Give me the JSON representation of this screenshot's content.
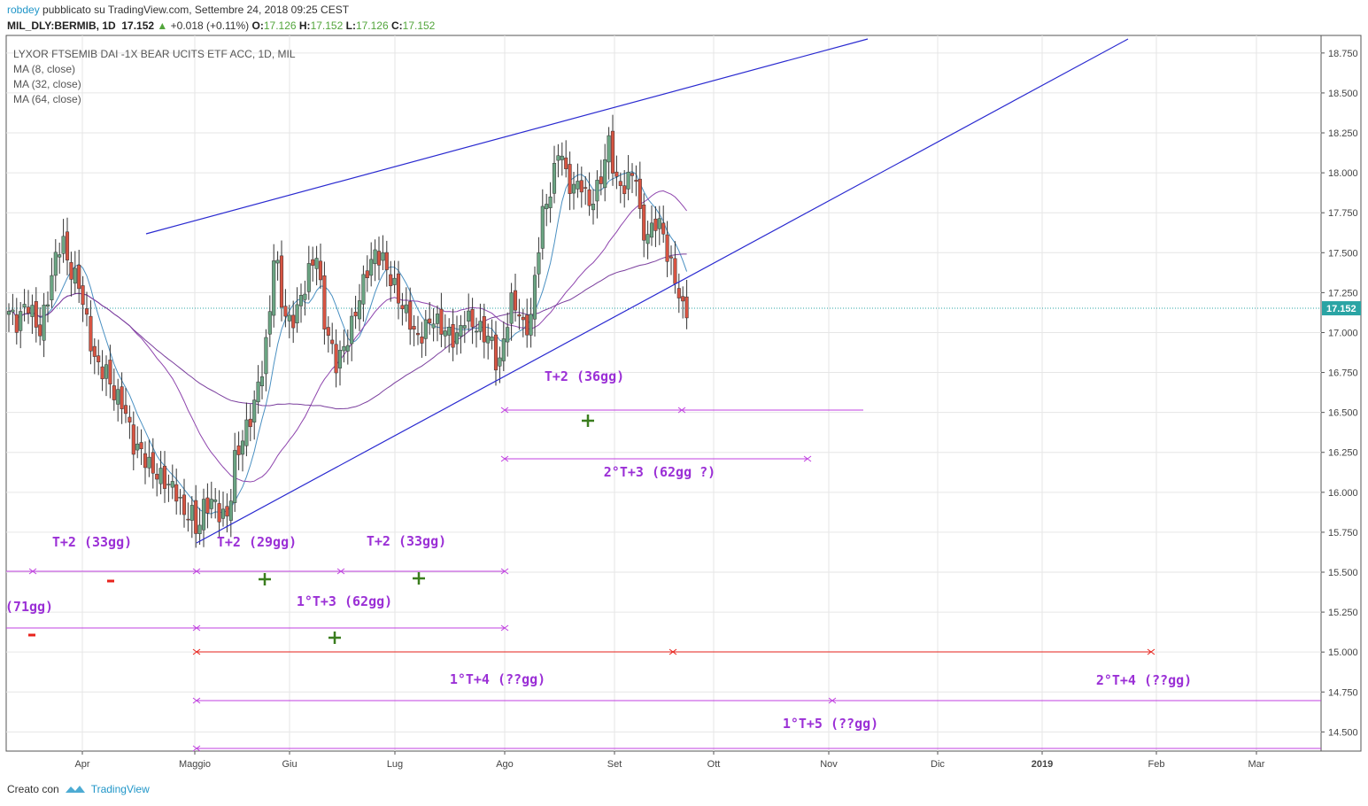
{
  "header": {
    "user": "robdey",
    "published": "pubblicato su TradingView.com, Settembre 24, 2018 09:25 CEST",
    "symbol": "MIL_DLY:BERMIB, 1D",
    "last": "17.152",
    "change_arrow": "▲",
    "change": "+0.018 (+0.11%)",
    "o_label": "O:",
    "o_value": "17.126",
    "h_label": "H:",
    "h_value": "17.152",
    "l_label": "L:",
    "l_value": "17.126",
    "c_label": "C:",
    "c_value": "17.152"
  },
  "legend": {
    "title": "LYXOR FTSEMIB DAI -1X BEAR UCITS ETF ACC, 1D, MIL",
    "ma1": "MA (8, close)",
    "ma2": "MA (32, close)",
    "ma3": "MA (64, close)"
  },
  "footer": {
    "created_with": "Creato con",
    "brand": "TradingView",
    "brand_icon": "tradingview-logo-icon"
  },
  "colors": {
    "up": "#6ba583",
    "down": "#d75442",
    "trend": "#2a2ad0",
    "ma8": "#4a90c2",
    "ma32": "#8e44ad",
    "ma64": "#7b3f9e",
    "purple_text": "#9b30d6",
    "red_marker": "#e8231c",
    "green_marker": "#3a7d1e",
    "price_badge": "#2aa4a4"
  },
  "chart_data": {
    "type": "candlestick",
    "title": "LYXOR FTSEMIB DAI -1X BEAR UCITS ETF ACC, 1D, MIL",
    "x_tick_labels": [
      "Apr",
      "Maggio",
      "Giu",
      "Lug",
      "Ago",
      "Set",
      "Ott",
      "Nov",
      "Dic",
      "2019",
      "Feb",
      "Mar"
    ],
    "y_tick_labels": [
      "18.750",
      "18.500",
      "18.250",
      "18.000",
      "17.750",
      "17.500",
      "17.250",
      "17.000",
      "16.750",
      "16.500",
      "16.250",
      "16.000",
      "15.750",
      "15.500",
      "15.250",
      "15.000",
      "14.750",
      "14.500"
    ],
    "ylim": [
      14.38,
      18.86
    ],
    "last_price": "17.152",
    "grid": true,
    "series": [
      {
        "name": "MA (8, close)"
      },
      {
        "name": "MA (32, close)"
      },
      {
        "name": "MA (64, close)"
      }
    ],
    "annotations": [
      {
        "text": "T+2 (36gg)"
      },
      {
        "text": "2°T+3 (62gg ?)"
      },
      {
        "text": "T+2 (33gg)"
      },
      {
        "text": "T+2 (29gg)"
      },
      {
        "text": "T+2 (33gg)"
      },
      {
        "text": "(71gg)"
      },
      {
        "text": "1°T+3 (62gg)"
      },
      {
        "text": "1°T+4 (??gg)"
      },
      {
        "text": "2°T+4 (??gg)"
      },
      {
        "text": "1°T+5 (??gg)"
      }
    ]
  }
}
